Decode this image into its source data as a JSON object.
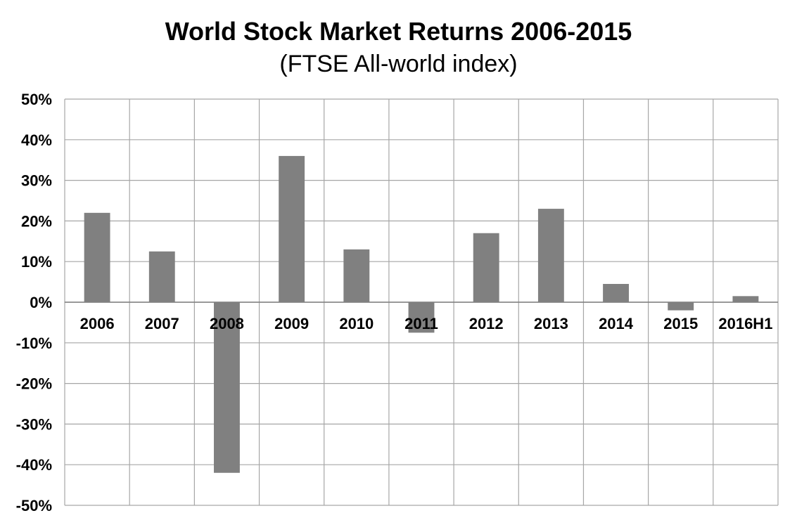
{
  "chart_data": {
    "type": "bar",
    "title": "World Stock Market Returns 2006-2015",
    "subtitle": "(FTSE All-world index)",
    "categories": [
      "2006",
      "2007",
      "2008",
      "2009",
      "2010",
      "2011",
      "2012",
      "2013",
      "2014",
      "2015",
      "2016H1"
    ],
    "values": [
      22,
      12.5,
      -42,
      36,
      13,
      -7.5,
      17,
      23,
      4.5,
      -2,
      1.5
    ],
    "y_ticks": [
      "50%",
      "40%",
      "30%",
      "20%",
      "10%",
      "0%",
      "-10%",
      "-20%",
      "-30%",
      "-40%",
      "-50%"
    ],
    "ylim": [
      -50,
      50
    ],
    "y_unit": "%",
    "grid": true,
    "legend": "none",
    "bar_color": "#808080",
    "grid_color": "#a6a6a6"
  }
}
